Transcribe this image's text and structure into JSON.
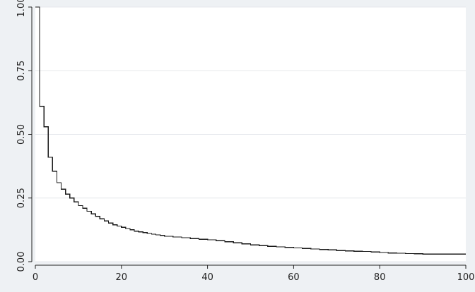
{
  "chart_data": {
    "type": "line",
    "line_style": "step",
    "title": "",
    "xlabel": "",
    "ylabel": "",
    "xlim": [
      0,
      100
    ],
    "ylim": [
      0,
      1
    ],
    "x_ticks": [
      0,
      20,
      40,
      60,
      80,
      100
    ],
    "x_tick_labels": [
      "0",
      "20",
      "40",
      "60",
      "80",
      "100"
    ],
    "y_ticks": [
      0,
      0.25,
      0.5,
      0.75,
      1
    ],
    "y_tick_labels": [
      "0.00",
      "0.25",
      "0.50",
      "0.75",
      "1.00"
    ],
    "grid": true,
    "grid_axis": "y",
    "legend": "none",
    "colors": {
      "background": "#eef1f4",
      "plot_area": "#ffffff",
      "gridline": "#e5e8ec",
      "line": "#1a1a1a",
      "axis": "#222222"
    },
    "series": [
      {
        "x": [
          0,
          1,
          2,
          3,
          4,
          5,
          6,
          7,
          8,
          9,
          10,
          11,
          12,
          13,
          14,
          15,
          16,
          17,
          18,
          19,
          20,
          21,
          22,
          23,
          24,
          25,
          26,
          27,
          28,
          29,
          30,
          32,
          34,
          36,
          38,
          40,
          42,
          44,
          46,
          48,
          50,
          52,
          54,
          56,
          58,
          60,
          62,
          64,
          66,
          68,
          70,
          72,
          74,
          76,
          78,
          80,
          82,
          84,
          86,
          88,
          90,
          95,
          100
        ],
        "y": [
          1.0,
          0.61,
          0.53,
          0.41,
          0.355,
          0.31,
          0.285,
          0.265,
          0.25,
          0.235,
          0.22,
          0.21,
          0.198,
          0.188,
          0.178,
          0.168,
          0.16,
          0.152,
          0.145,
          0.14,
          0.135,
          0.13,
          0.125,
          0.12,
          0.117,
          0.114,
          0.111,
          0.108,
          0.105,
          0.103,
          0.1,
          0.097,
          0.094,
          0.091,
          0.088,
          0.086,
          0.082,
          0.078,
          0.074,
          0.07,
          0.066,
          0.063,
          0.06,
          0.058,
          0.056,
          0.054,
          0.052,
          0.05,
          0.048,
          0.046,
          0.044,
          0.042,
          0.041,
          0.04,
          0.038,
          0.036,
          0.034,
          0.033,
          0.032,
          0.031,
          0.03,
          0.03,
          0.03
        ]
      }
    ]
  }
}
